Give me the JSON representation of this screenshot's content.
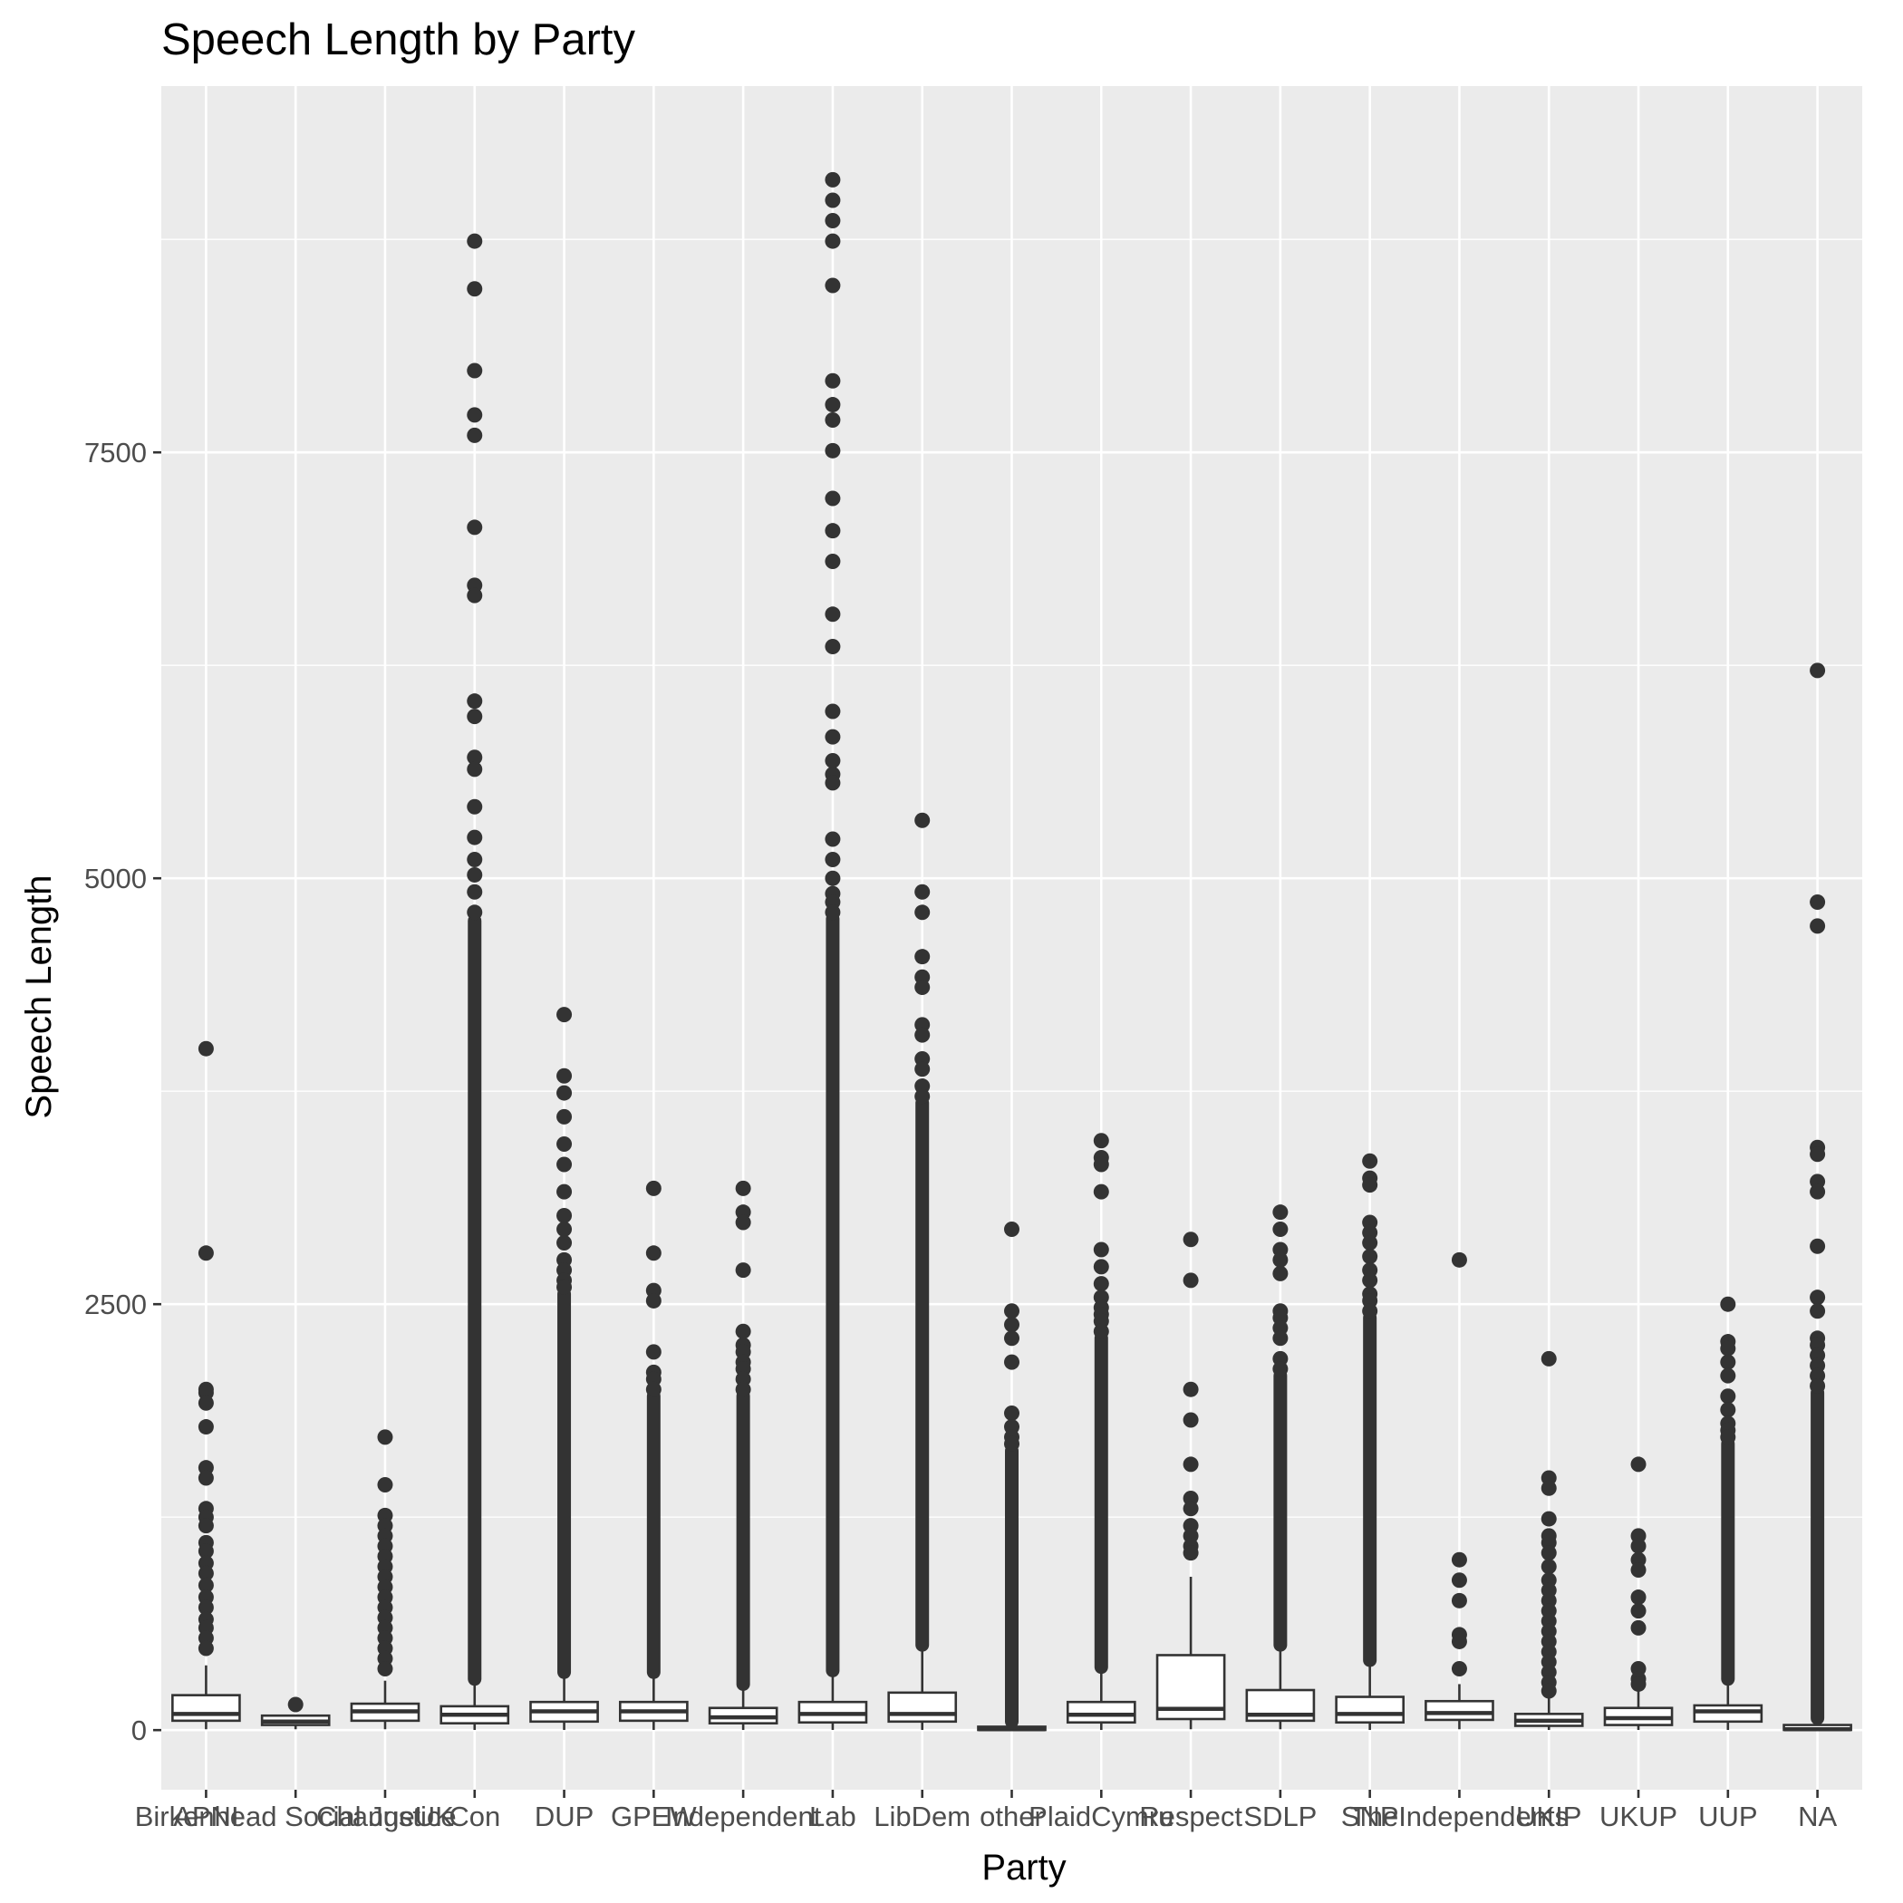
{
  "chart_data": {
    "type": "boxplot",
    "title": "Speech Length by Party",
    "xlabel": "Party",
    "ylabel": "Speech Length",
    "ylim": [
      -350,
      9650
    ],
    "yticks": [
      0,
      2500,
      5000,
      7500
    ],
    "ytick_labels": [
      "0",
      "2500",
      "5000",
      "7500"
    ],
    "grid": true,
    "colors": {
      "panel": "#EBEBEB",
      "grid": "#FFFFFF",
      "box_fill": "#FFFFFF",
      "box_stroke": "#333333",
      "outlier": "#333333",
      "tick_label": "#4D4D4D"
    },
    "boxes": [
      {
        "name": "APNI",
        "q1": 55,
        "median": 95,
        "q3": 205,
        "whisker_low": 5,
        "whisker_high": 380,
        "outliers": [
          4000,
          2800,
          2000,
          1980,
          1920,
          1780,
          1540,
          1480,
          1300,
          1250,
          1200,
          1100,
          1050,
          980,
          920,
          850,
          780,
          720,
          650,
          600,
          540,
          480
        ]
      },
      {
        "name": "Birkenhead Social Justice",
        "q1": 30,
        "median": 50,
        "q3": 85,
        "whisker_low": 5,
        "whisker_high": 85,
        "outliers": [
          150
        ]
      },
      {
        "name": "ChangeUK",
        "q1": 55,
        "median": 110,
        "q3": 155,
        "whisker_low": 5,
        "whisker_high": 290,
        "outliers": [
          1720,
          1440,
          1260,
          1200,
          1140,
          1080,
          1020,
          960,
          900,
          840,
          780,
          720,
          660,
          600,
          540,
          480,
          420,
          360
        ]
      },
      {
        "name": "Con",
        "q1": 40,
        "median": 90,
        "q3": 140,
        "whisker_low": 1,
        "whisker_high": 290,
        "outliers": [
          8740,
          8460,
          7980,
          7720,
          7600,
          7060,
          6720,
          6660,
          6040,
          5950,
          5710,
          5640,
          5420,
          5240,
          5110,
          5020,
          4920,
          4800
        ],
        "outlier_band": [
          300,
          4750
        ]
      },
      {
        "name": "DUP",
        "q1": 50,
        "median": 110,
        "q3": 165,
        "whisker_low": 1,
        "whisker_high": 330,
        "outliers": [
          4200,
          3840,
          3740,
          3600,
          3440,
          3320,
          3160,
          3020,
          2940,
          2860,
          2760,
          2700,
          2640,
          2600
        ],
        "outlier_band": [
          340,
          2560
        ]
      },
      {
        "name": "GPEW",
        "q1": 55,
        "median": 110,
        "q3": 165,
        "whisker_low": 1,
        "whisker_high": 330,
        "outliers": [
          3180,
          2800,
          2580,
          2520,
          2220,
          2100,
          2060,
          2000
        ],
        "outlier_band": [
          340,
          1960
        ]
      },
      {
        "name": "Independent",
        "q1": 40,
        "median": 75,
        "q3": 130,
        "whisker_low": 1,
        "whisker_high": 260,
        "outliers": [
          3180,
          3040,
          2980,
          2700,
          2340,
          2260,
          2220,
          2160,
          2120,
          2060,
          2000
        ],
        "outlier_band": [
          270,
          1960
        ]
      },
      {
        "name": "Lab",
        "q1": 45,
        "median": 95,
        "q3": 165,
        "whisker_low": 1,
        "whisker_high": 340,
        "outliers": [
          9100,
          8980,
          8860,
          8740,
          8480,
          7920,
          7780,
          7690,
          7510,
          7230,
          7040,
          6860,
          6550,
          6360,
          5980,
          5830,
          5690,
          5610,
          5560,
          5230,
          5110,
          5000,
          4910,
          4860,
          4800
        ],
        "outlier_band": [
          350,
          4760
        ]
      },
      {
        "name": "LibDem",
        "q1": 50,
        "median": 95,
        "q3": 220,
        "whisker_low": 1,
        "whisker_high": 490,
        "outliers": [
          5340,
          4920,
          4800,
          4540,
          4420,
          4360,
          4140,
          4080,
          3940,
          3880,
          3780,
          3720
        ],
        "outlier_band": [
          500,
          3680
        ]
      },
      {
        "name": "other",
        "q1": 1,
        "median": 5,
        "q3": 20,
        "whisker_low": 0,
        "whisker_high": 40,
        "outliers": [
          2940,
          2460,
          2380,
          2300,
          2160,
          1860,
          1780,
          1720,
          1680
        ],
        "outlier_band": [
          50,
          1640
        ]
      },
      {
        "name": "PlaidCymru",
        "q1": 45,
        "median": 90,
        "q3": 165,
        "whisker_low": 1,
        "whisker_high": 360,
        "outliers": [
          3460,
          3360,
          3320,
          3160,
          2820,
          2720,
          2620,
          2540,
          2480,
          2440,
          2400,
          2340
        ],
        "outlier_band": [
          370,
          2300
        ]
      },
      {
        "name": "Respect",
        "q1": 65,
        "median": 125,
        "q3": 440,
        "whisker_low": 5,
        "whisker_high": 900,
        "outliers": [
          2880,
          2640,
          2000,
          1820,
          1560,
          1360,
          1300,
          1200,
          1140,
          1080,
          1040
        ]
      },
      {
        "name": "SDLP",
        "q1": 55,
        "median": 90,
        "q3": 235,
        "whisker_low": 5,
        "whisker_high": 490,
        "outliers": [
          3040,
          2940,
          2820,
          2760,
          2680,
          2460,
          2420,
          2360,
          2300,
          2180,
          2120
        ],
        "outlier_band": [
          500,
          2080
        ]
      },
      {
        "name": "SNP",
        "q1": 45,
        "median": 95,
        "q3": 195,
        "whisker_low": 1,
        "whisker_high": 400,
        "outliers": [
          3340,
          3240,
          3200,
          2980,
          2920,
          2860,
          2780,
          2700,
          2640,
          2560,
          2520,
          2460
        ],
        "outlier_band": [
          410,
          2420
        ]
      },
      {
        "name": "TheIndependents",
        "q1": 60,
        "median": 100,
        "q3": 170,
        "whisker_low": 5,
        "whisker_high": 270,
        "outliers": [
          2760,
          1000,
          880,
          760,
          560,
          520,
          360
        ]
      },
      {
        "name": "UKIP",
        "q1": 25,
        "median": 55,
        "q3": 95,
        "whisker_low": 1,
        "whisker_high": 190,
        "outliers": [
          2180,
          1480,
          1420,
          1240,
          1140,
          1100,
          1040,
          960,
          880,
          820,
          760,
          700,
          640,
          580,
          520,
          460,
          400,
          340,
          280,
          230
        ]
      },
      {
        "name": "UKUP",
        "q1": 30,
        "median": 70,
        "q3": 130,
        "whisker_low": 1,
        "whisker_high": 240,
        "outliers": [
          1560,
          1140,
          1080,
          1000,
          940,
          780,
          700,
          600,
          360,
          300,
          270
        ]
      },
      {
        "name": "UUP",
        "q1": 50,
        "median": 110,
        "q3": 145,
        "whisker_low": 1,
        "whisker_high": 290,
        "outliers": [
          2500,
          2280,
          2240,
          2160,
          2080,
          1960,
          1880,
          1800,
          1760,
          1720
        ],
        "outlier_band": [
          300,
          1680
        ]
      },
      {
        "name": "NA",
        "q1": 1,
        "median": 5,
        "q3": 30,
        "whisker_low": 0,
        "whisker_high": 60,
        "outliers": [
          6220,
          4860,
          4720,
          3420,
          3380,
          3220,
          3160,
          2840,
          2540,
          2460,
          2300,
          2260,
          2200,
          2140,
          2080,
          2020
        ],
        "outlier_band": [
          70,
          1980
        ]
      }
    ]
  }
}
